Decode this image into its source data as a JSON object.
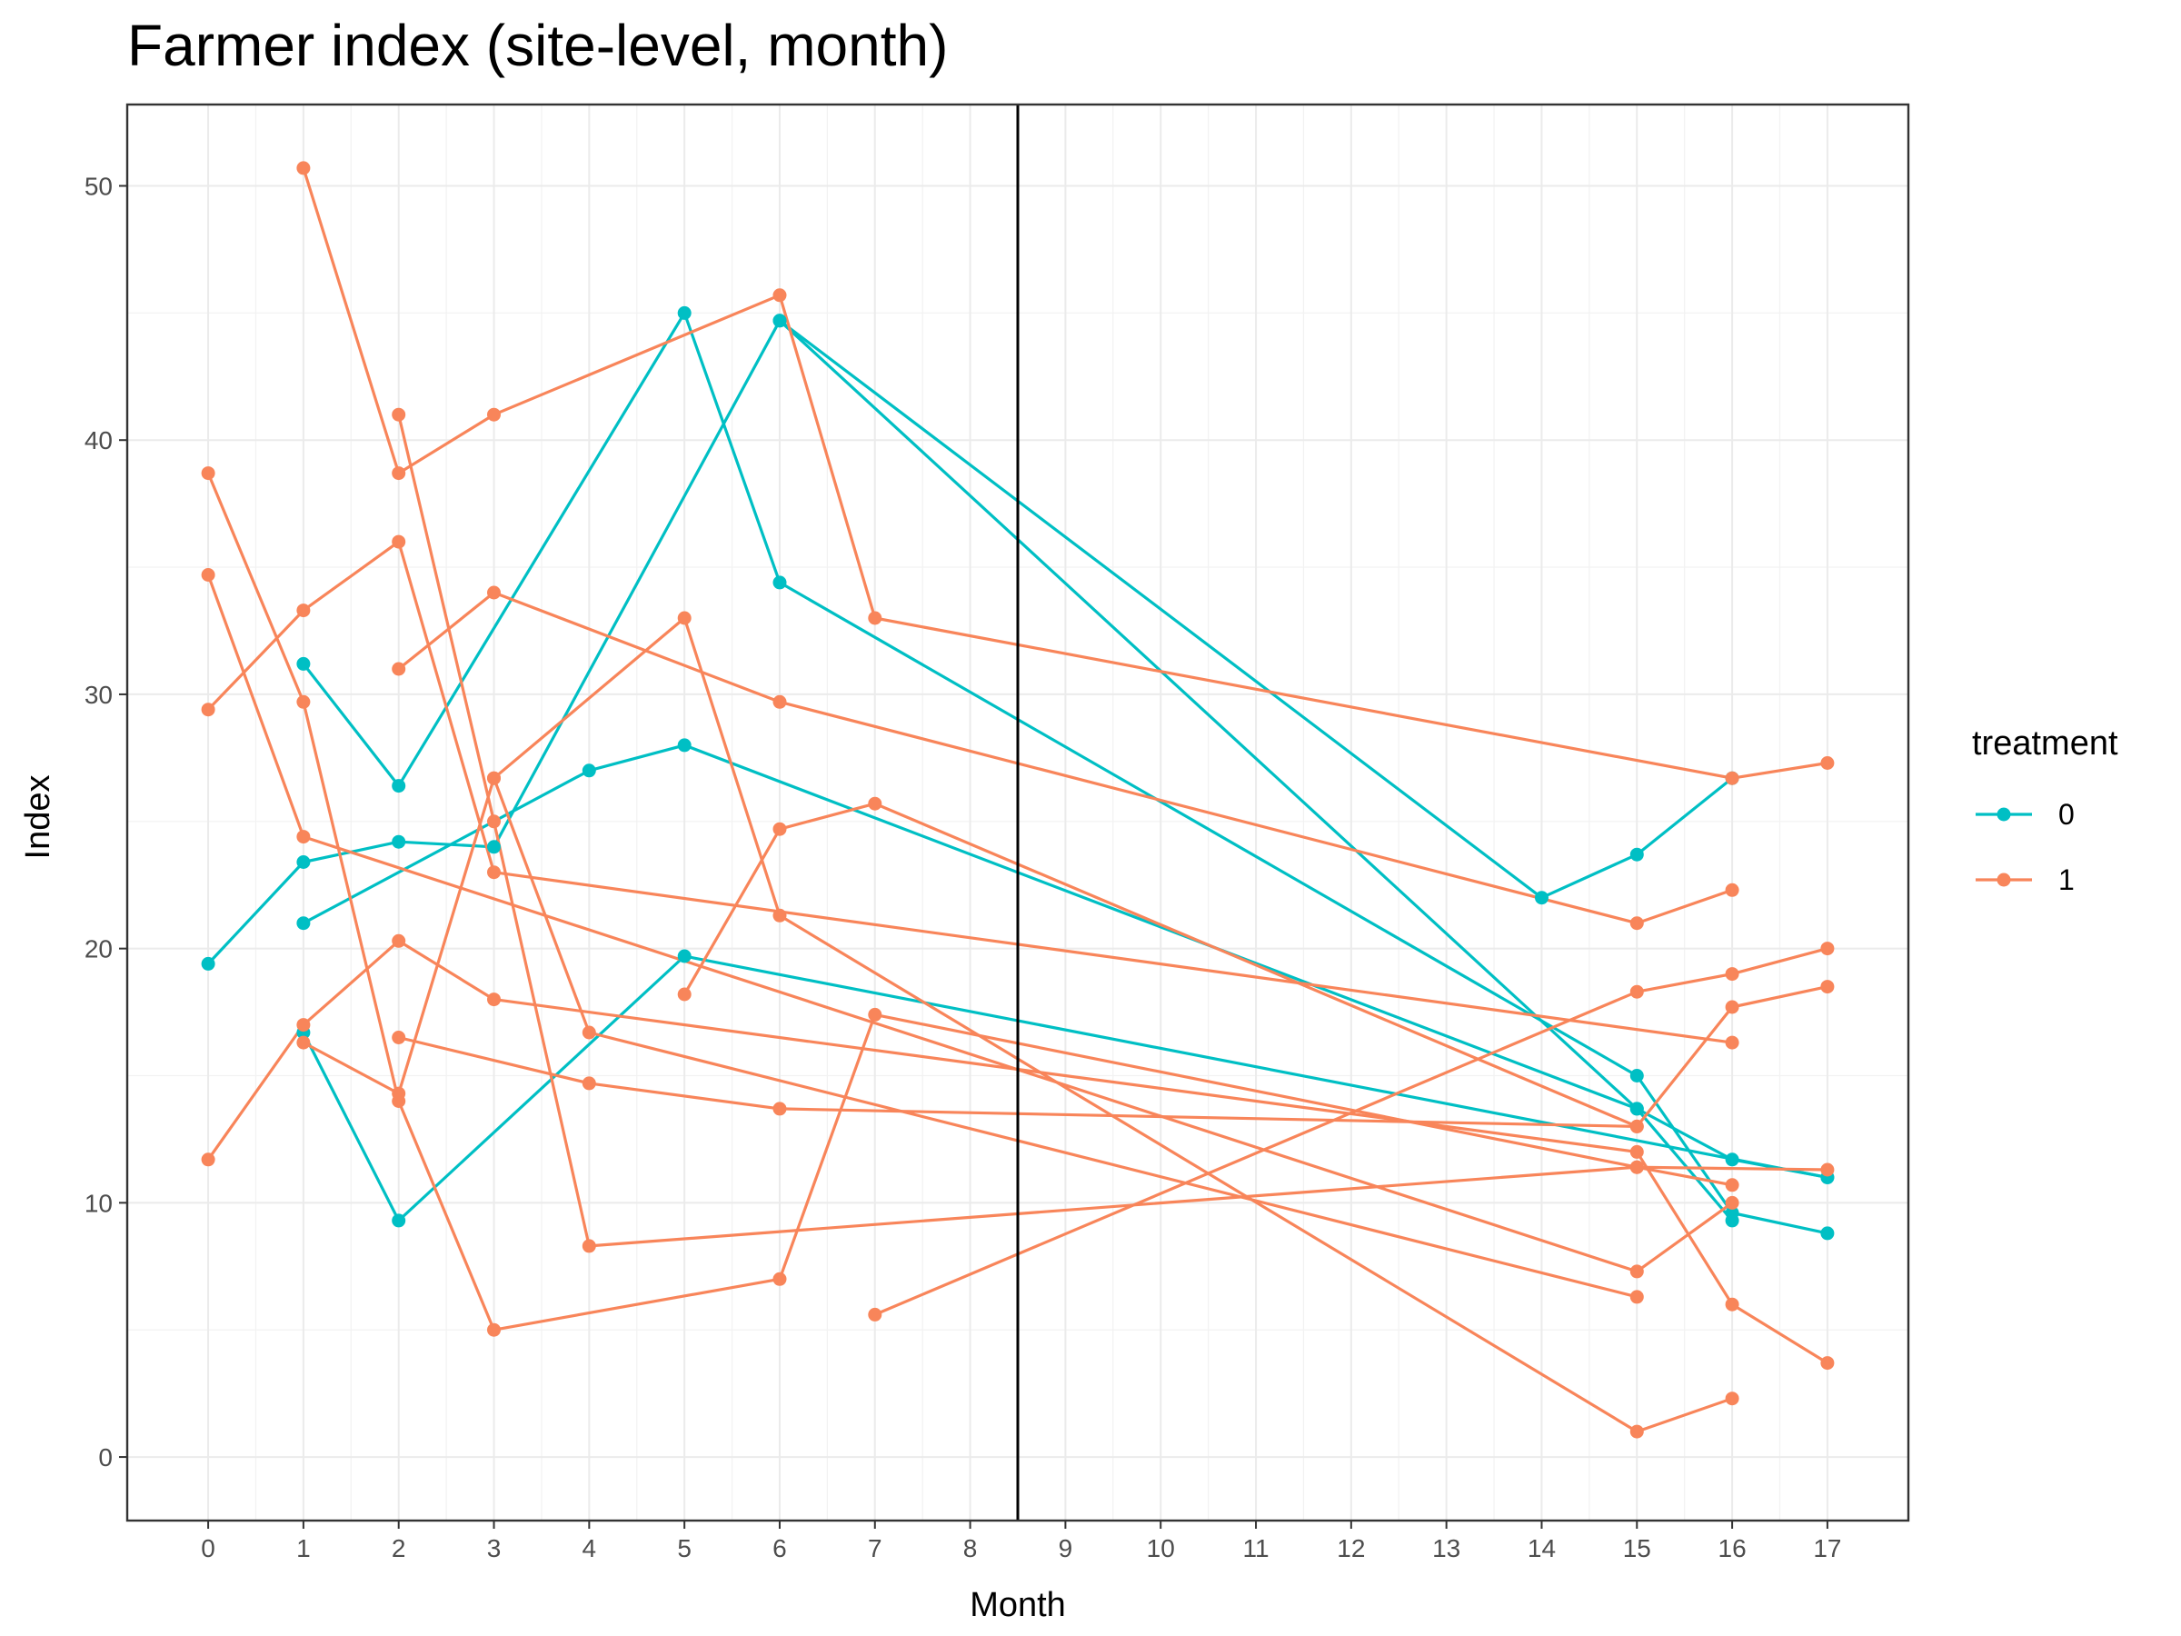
{
  "chart_data": {
    "type": "line",
    "title": "Farmer index (site-level, month)",
    "xlabel": "Month",
    "ylabel": "Index",
    "x_ticks": [
      0,
      1,
      2,
      3,
      4,
      5,
      6,
      7,
      8,
      9,
      10,
      11,
      12,
      13,
      14,
      15,
      16,
      17
    ],
    "x_tick_labels": [
      "0",
      "1",
      "2",
      "3",
      "4",
      "5",
      "6",
      "7",
      "8",
      "9",
      "10",
      "11",
      "12",
      "13",
      "14",
      "15",
      "16",
      "17"
    ],
    "y_ticks": [
      0,
      10,
      20,
      30,
      40,
      50
    ],
    "y_tick_labels": [
      "0",
      "10",
      "20",
      "30",
      "40",
      "50"
    ],
    "xlim": [
      -0.85,
      17.85
    ],
    "ylim": [
      -2.5,
      53.2
    ],
    "vline_x": 8.5,
    "grid": true,
    "legend": {
      "title": "treatment",
      "position": "right",
      "entries": [
        {
          "label": "0",
          "color": "#00BFC4"
        },
        {
          "label": "1",
          "color": "#F8855A"
        }
      ]
    },
    "series": [
      {
        "group": "0",
        "color": "#00BFC4",
        "points": [
          [
            0,
            19.4
          ],
          [
            1,
            23.4
          ],
          [
            2,
            24.2
          ],
          [
            3,
            24.0
          ],
          [
            6,
            44.7
          ],
          [
            15,
            13.7
          ],
          [
            16,
            9.3
          ]
        ]
      },
      {
        "group": "0",
        "color": "#00BFC4",
        "points": [
          [
            1,
            31.2
          ],
          [
            2,
            26.4
          ],
          [
            5,
            45.0
          ],
          [
            6,
            34.4
          ],
          [
            15,
            15.0
          ],
          [
            16,
            9.6
          ],
          [
            17,
            8.8
          ]
        ]
      },
      {
        "group": "0",
        "color": "#00BFC4",
        "points": [
          [
            1,
            21.0
          ],
          [
            4,
            27.0
          ],
          [
            5,
            28.0
          ],
          [
            15,
            13.7
          ],
          [
            16,
            11.7
          ],
          [
            17,
            11.0
          ]
        ]
      },
      {
        "group": "0",
        "color": "#00BFC4",
        "points": [
          [
            1,
            16.7
          ],
          [
            2,
            9.3
          ],
          [
            5,
            19.7
          ],
          [
            17,
            11.0
          ]
        ]
      },
      {
        "group": "0",
        "color": "#00BFC4",
        "points": [
          [
            6,
            44.7
          ],
          [
            14,
            22.0
          ],
          [
            15,
            23.7
          ],
          [
            16,
            26.7
          ]
        ]
      },
      {
        "group": "1",
        "color": "#F8855A",
        "points": [
          [
            0,
            29.4
          ],
          [
            1,
            33.3
          ],
          [
            2,
            36.0
          ],
          [
            3,
            23.0
          ],
          [
            16,
            16.3
          ]
        ]
      },
      {
        "group": "1",
        "color": "#F8855A",
        "points": [
          [
            0,
            38.7
          ],
          [
            1,
            29.7
          ],
          [
            2,
            14.0
          ],
          [
            3,
            5.0
          ],
          [
            6,
            7.0
          ],
          [
            7,
            17.4
          ],
          [
            15,
            11.4
          ],
          [
            17,
            11.3
          ]
        ]
      },
      {
        "group": "1",
        "color": "#F8855A",
        "points": [
          [
            0,
            34.7
          ],
          [
            1,
            24.4
          ],
          [
            15,
            7.3
          ],
          [
            16,
            10.0
          ]
        ]
      },
      {
        "group": "1",
        "color": "#F8855A",
        "points": [
          [
            0,
            11.7
          ],
          [
            1,
            17.0
          ],
          [
            2,
            20.3
          ],
          [
            3,
            18.0
          ],
          [
            15,
            12.0
          ],
          [
            16,
            6.0
          ],
          [
            17,
            3.7
          ]
        ]
      },
      {
        "group": "1",
        "color": "#F8855A",
        "points": [
          [
            1,
            50.7
          ],
          [
            2,
            38.7
          ],
          [
            3,
            41.0
          ],
          [
            6,
            45.7
          ],
          [
            7,
            33.0
          ],
          [
            16,
            26.7
          ],
          [
            17,
            27.3
          ]
        ]
      },
      {
        "group": "1",
        "color": "#F8855A",
        "points": [
          [
            1,
            16.3
          ],
          [
            2,
            14.3
          ],
          [
            3,
            26.7
          ],
          [
            5,
            33.0
          ],
          [
            6,
            21.3
          ],
          [
            15,
            1.0
          ],
          [
            16,
            2.3
          ]
        ]
      },
      {
        "group": "1",
        "color": "#F8855A",
        "points": [
          [
            2,
            31.0
          ],
          [
            3,
            34.0
          ],
          [
            6,
            29.7
          ],
          [
            15,
            21.0
          ],
          [
            16,
            22.3
          ]
        ]
      },
      {
        "group": "1",
        "color": "#F8855A",
        "points": [
          [
            2,
            16.5
          ],
          [
            4,
            14.7
          ],
          [
            6,
            13.7
          ],
          [
            15,
            13.0
          ],
          [
            16,
            17.7
          ],
          [
            17,
            18.5
          ]
        ]
      },
      {
        "group": "1",
        "color": "#F8855A",
        "points": [
          [
            2,
            41.0
          ],
          [
            3,
            25.0
          ],
          [
            4,
            8.3
          ],
          [
            15,
            11.4
          ],
          [
            16,
            10.7
          ]
        ]
      },
      {
        "group": "1",
        "color": "#F8855A",
        "points": [
          [
            3,
            26.7
          ],
          [
            4,
            16.7
          ],
          [
            15,
            6.3
          ]
        ]
      },
      {
        "group": "1",
        "color": "#F8855A",
        "points": [
          [
            5,
            18.2
          ],
          [
            6,
            24.7
          ],
          [
            7,
            25.7
          ],
          [
            15,
            13.0
          ]
        ]
      },
      {
        "group": "1",
        "color": "#F8855A",
        "points": [
          [
            7,
            5.6
          ],
          [
            15,
            18.3
          ],
          [
            16,
            19.0
          ],
          [
            17,
            20.0
          ]
        ]
      }
    ]
  }
}
